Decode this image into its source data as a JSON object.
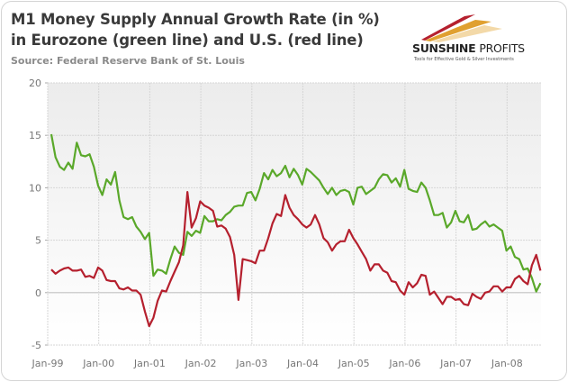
{
  "chart_data": {
    "type": "line",
    "title": "M1 Money Supply Annual Growth Rate (in %)",
    "title_line2": "in Eurozone (green line) and U.S. (red line)",
    "subtitle": "Source: Federal Reserve Bank of St. Louis",
    "xlabel": "",
    "ylabel": "",
    "ylim": [
      -5,
      20
    ],
    "yticks": [
      "20",
      "15",
      "10",
      "5",
      "0",
      "-5"
    ],
    "ytick_values": [
      20,
      15,
      10,
      5,
      0,
      -5
    ],
    "xticks": [
      "Jan-99",
      "Jan-00",
      "Jan-01",
      "Jan-02",
      "Jan-03",
      "Jan-04",
      "Jan-05",
      "Jan-06",
      "Jan-07",
      "Jan-08"
    ],
    "x_start": "1999-01",
    "x_frequency": "monthly",
    "grid": true,
    "series": [
      {
        "name": "Eurozone",
        "color": "#5aa82a",
        "values": [
          15.1,
          12.9,
          12.0,
          11.7,
          12.4,
          11.8,
          14.3,
          13.1,
          13.0,
          13.2,
          12.0,
          10.2,
          9.3,
          10.8,
          10.3,
          11.5,
          8.8,
          7.2,
          7.0,
          7.2,
          6.3,
          5.8,
          5.1,
          5.7,
          1.6,
          2.2,
          2.1,
          1.8,
          3.2,
          4.4,
          3.8,
          3.6,
          5.8,
          5.4,
          5.9,
          5.7,
          7.3,
          6.8,
          6.8,
          7.0,
          6.9,
          7.4,
          7.7,
          8.2,
          8.3,
          8.3,
          9.5,
          9.6,
          8.8,
          9.9,
          11.4,
          10.8,
          11.7,
          11.1,
          11.4,
          12.1,
          11.0,
          11.8,
          11.2,
          10.3,
          11.8,
          11.5,
          11.1,
          10.7,
          10.0,
          9.4,
          10.0,
          9.3,
          9.7,
          9.8,
          9.6,
          8.4,
          10.0,
          10.1,
          9.4,
          9.7,
          10.0,
          10.8,
          11.3,
          11.2,
          10.5,
          10.9,
          10.1,
          11.7,
          9.9,
          9.7,
          9.6,
          10.5,
          10.0,
          8.8,
          7.4,
          7.4,
          7.6,
          6.2,
          6.7,
          7.8,
          6.8,
          6.7,
          7.4,
          6.0,
          6.1,
          6.5,
          6.8,
          6.3,
          6.5,
          6.2,
          5.9,
          4.0,
          4.4,
          3.4,
          3.2,
          2.2,
          2.3,
          1.4,
          0.1,
          0.9
        ]
      },
      {
        "name": "U.S.",
        "color": "#b5202e",
        "values": [
          2.2,
          1.8,
          2.1,
          2.3,
          2.4,
          2.1,
          2.1,
          2.2,
          1.5,
          1.6,
          1.4,
          2.4,
          2.1,
          1.2,
          1.1,
          1.1,
          0.4,
          0.3,
          0.5,
          0.2,
          0.2,
          -0.2,
          -1.8,
          -3.2,
          -2.4,
          -0.8,
          0.2,
          0.1,
          1.1,
          2.0,
          2.9,
          4.5,
          9.6,
          6.2,
          7.1,
          8.7,
          8.3,
          8.1,
          7.8,
          6.3,
          6.4,
          6.1,
          5.3,
          3.6,
          -0.7,
          3.2,
          3.1,
          3.0,
          2.8,
          4.0,
          4.0,
          5.2,
          6.6,
          7.5,
          7.3,
          9.3,
          8.1,
          7.4,
          7.0,
          6.5,
          6.2,
          6.5,
          7.4,
          6.5,
          5.2,
          4.8,
          4.0,
          4.6,
          4.9,
          4.9,
          6.0,
          5.2,
          4.6,
          3.9,
          3.2,
          2.1,
          2.7,
          2.7,
          2.1,
          1.9,
          1.1,
          1.0,
          0.2,
          -0.2,
          1.0,
          0.5,
          0.9,
          1.7,
          1.6,
          -0.2,
          0.1,
          -0.5,
          -1.1,
          -0.4,
          -0.4,
          -0.7,
          -0.6,
          -1.1,
          -1.2,
          -0.1,
          -0.4,
          -0.6,
          0.0,
          0.1,
          0.6,
          0.6,
          0.1,
          0.5,
          0.5,
          1.3,
          1.6,
          1.1,
          0.8,
          2.6,
          3.6,
          2.1
        ]
      }
    ],
    "legend": "none"
  },
  "logo": {
    "name_bold": "SUNSHINE",
    "name_regular": "PROFITS",
    "tagline": "Tools for Effective Gold & Silver Investments"
  }
}
